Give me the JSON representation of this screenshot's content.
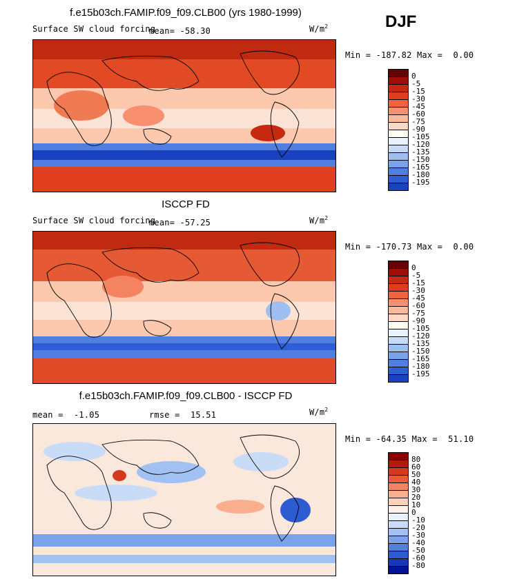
{
  "season": "DJF",
  "units_label": "W/m",
  "units_sup": "2",
  "colors": {
    "contour_scale_abs": [
      "#fffdf0",
      "#fdd9c4",
      "#fbb99a",
      "#f88f6e",
      "#f0643f",
      "#e03d1f",
      "#c62810",
      "#9e0d08",
      "#680002"
    ],
    "contour_scale_neg": [
      "#e8f1fd",
      "#c5dbf8",
      "#9fbff1",
      "#7aa2ea",
      "#517fe1",
      "#2e5ed4",
      "#1a41bf",
      "#0c2aa1",
      "#03127a",
      "#00005e"
    ],
    "diff_pos": [
      "#fff1e8",
      "#fcd2bb",
      "#f9ae8d",
      "#f48362",
      "#ea5a3b",
      "#d4391d",
      "#b21a0d",
      "#8b0000"
    ],
    "diff_neg": [
      "#e8f1fd",
      "#c8dcf8",
      "#a1c1f2",
      "#7ba3ea",
      "#527fe0",
      "#2d5bd2",
      "#1736b8",
      "#04129a",
      "#00005e"
    ]
  },
  "chart_data": [
    {
      "type": "heatmap",
      "title": "f.e15b03ch.FAMIP.f09_f09.CLB00 (yrs 1980-1999)",
      "subtitle": "Surface SW cloud forcing",
      "mean_label": "mean=",
      "mean": "-58.30",
      "min_label": "Min =",
      "min": "-187.82",
      "max_label": "Max =",
      "max": "0.00",
      "colorbar_levels": [
        "0",
        "-5",
        "-15",
        "-30",
        "-45",
        "-60",
        "-75",
        "-90",
        "-105",
        "-120",
        "-135",
        "-150",
        "-165",
        "-180",
        "-195"
      ]
    },
    {
      "type": "heatmap",
      "title": "ISCCP FD",
      "subtitle": "Surface SW cloud forcing",
      "mean_label": "mean=",
      "mean": "-57.25",
      "min_label": "Min =",
      "min": "-170.73",
      "max_label": "Max =",
      "max": "0.00",
      "colorbar_levels": [
        "0",
        "-5",
        "-15",
        "-30",
        "-45",
        "-60",
        "-75",
        "-90",
        "-105",
        "-120",
        "-135",
        "-150",
        "-165",
        "-180",
        "-195"
      ]
    },
    {
      "type": "heatmap",
      "title": "f.e15b03ch.FAMIP.f09_f09.CLB00 - ISCCP FD",
      "mean_label": "mean =",
      "mean": "-1.05",
      "rmse_label": "rmse =",
      "rmse": "15.51",
      "min_label": "Min =",
      "min": "-64.35",
      "max_label": "Max =",
      "max": "51.10",
      "colorbar_levels": [
        "80",
        "60",
        "50",
        "40",
        "30",
        "20",
        "10",
        "0",
        "-10",
        "-20",
        "-30",
        "-40",
        "-50",
        "-60",
        "-80"
      ]
    }
  ]
}
